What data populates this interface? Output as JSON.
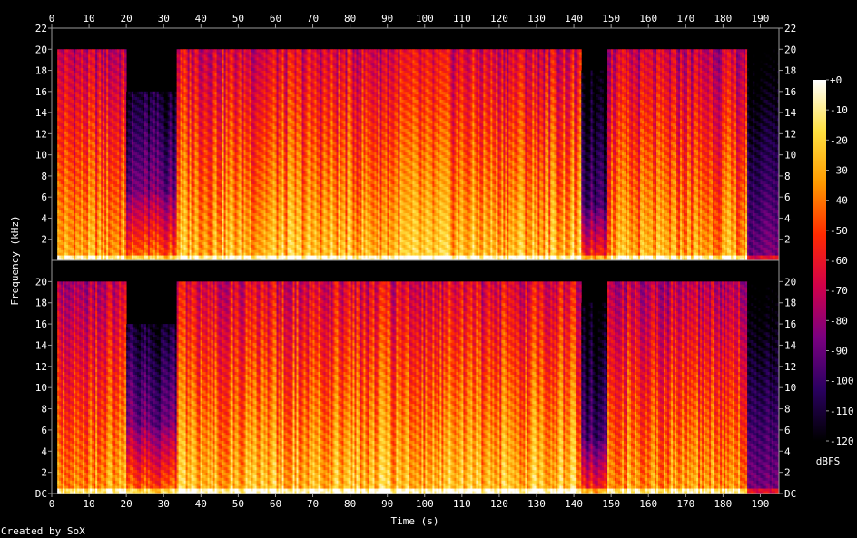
{
  "chart_data": {
    "type": "heatmap",
    "xlabel": "Time (s)",
    "ylabel": "Frequency (kHz)",
    "x_ticks": [
      "0",
      "10",
      "20",
      "30",
      "40",
      "50",
      "60",
      "70",
      "80",
      "90",
      "100",
      "110",
      "120",
      "130",
      "140",
      "150",
      "160",
      "170",
      "180",
      "190"
    ],
    "xlim": [
      0,
      195
    ],
    "ylim": [
      0,
      22
    ],
    "y_ticks_top": [
      "2",
      "4",
      "6",
      "8",
      "10",
      "12",
      "14",
      "16",
      "18",
      "20",
      "22"
    ],
    "y_ticks_bottom": [
      "DC",
      "2",
      "4",
      "6",
      "8",
      "10",
      "12",
      "14",
      "16",
      "18",
      "20"
    ],
    "colorbar": {
      "label": "dBFS",
      "range": [
        -120,
        0
      ],
      "ticks": [
        "+0",
        "-10",
        "-20",
        "-30",
        "-40",
        "-50",
        "-60",
        "-70",
        "-80",
        "-90",
        "-100",
        "-110",
        "-120"
      ],
      "colors": [
        "#000000",
        "#2a0060",
        "#7a0080",
        "#d0004a",
        "#ff2a00",
        "#ff9a00",
        "#ffe040",
        "#ffffff"
      ]
    },
    "channels": [
      {
        "segments": [
          {
            "t0": 0,
            "t1": 1.5,
            "level": 0.0,
            "fmax": 0
          },
          {
            "t0": 1.5,
            "t1": 20,
            "level": 0.8,
            "fmax": 20
          },
          {
            "t0": 20,
            "t1": 33.5,
            "level": 0.7,
            "fmax": 16,
            "fmid": 6.2
          },
          {
            "t0": 33.5,
            "t1": 142,
            "level": 0.85,
            "fmax": 20
          },
          {
            "t0": 142,
            "t1": 149,
            "level": 0.62,
            "fmax": 18,
            "fmid": 5
          },
          {
            "t0": 149,
            "t1": 186.5,
            "level": 0.8,
            "fmax": 20
          },
          {
            "t0": 186.5,
            "t1": 195,
            "level": 0.3,
            "fmax": 20
          }
        ]
      },
      {
        "segments": [
          {
            "t0": 0,
            "t1": 1.5,
            "level": 0.0,
            "fmax": 0
          },
          {
            "t0": 1.5,
            "t1": 20,
            "level": 0.8,
            "fmax": 20
          },
          {
            "t0": 20,
            "t1": 33.5,
            "level": 0.7,
            "fmax": 16,
            "fmid": 6.2
          },
          {
            "t0": 33.5,
            "t1": 142,
            "level": 0.85,
            "fmax": 20
          },
          {
            "t0": 142,
            "t1": 149,
            "level": 0.62,
            "fmax": 18,
            "fmid": 5
          },
          {
            "t0": 149,
            "t1": 186.5,
            "level": 0.8,
            "fmax": 20
          },
          {
            "t0": 186.5,
            "t1": 195,
            "level": 0.3,
            "fmax": 20
          }
        ]
      }
    ]
  },
  "footer": "Created by SoX"
}
